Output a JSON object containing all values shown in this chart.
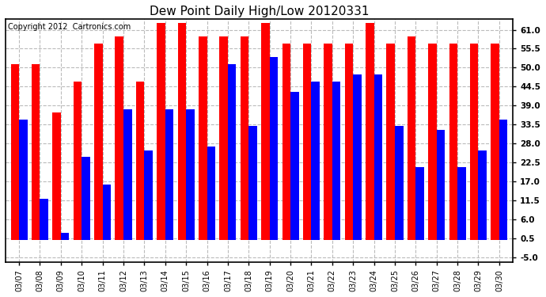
{
  "title": "Dew Point Daily High/Low 20120331",
  "copyright": "Copyright 2012  Cartronics.com",
  "dates": [
    "03/07",
    "03/08",
    "03/09",
    "03/10",
    "03/11",
    "03/12",
    "03/13",
    "03/14",
    "03/15",
    "03/16",
    "03/17",
    "03/18",
    "03/19",
    "03/20",
    "03/21",
    "03/22",
    "03/23",
    "03/24",
    "03/25",
    "03/26",
    "03/27",
    "03/28",
    "03/29",
    "03/30"
  ],
  "highs": [
    51,
    51,
    37,
    46,
    57,
    59,
    46,
    63,
    63,
    59,
    59,
    59,
    63,
    57,
    57,
    57,
    57,
    63,
    57,
    59,
    57,
    57,
    57,
    57
  ],
  "lows": [
    35,
    12,
    2,
    24,
    16,
    38,
    26,
    38,
    38,
    27,
    51,
    33,
    53,
    43,
    46,
    46,
    48,
    48,
    33,
    21,
    32,
    21,
    26,
    35
  ],
  "high_color": "#ff0000",
  "low_color": "#0000ff",
  "bg_color": "#ffffff",
  "plot_bg_color": "#ffffff",
  "yticks": [
    -5.0,
    0.5,
    6.0,
    11.5,
    17.0,
    22.5,
    28.0,
    33.5,
    39.0,
    44.5,
    50.0,
    55.5,
    61.0
  ],
  "ylim": [
    -6.5,
    64.0
  ],
  "grid_color": "#bbbbbb",
  "title_fontsize": 11,
  "copyright_fontsize": 7,
  "bar_width": 0.4
}
